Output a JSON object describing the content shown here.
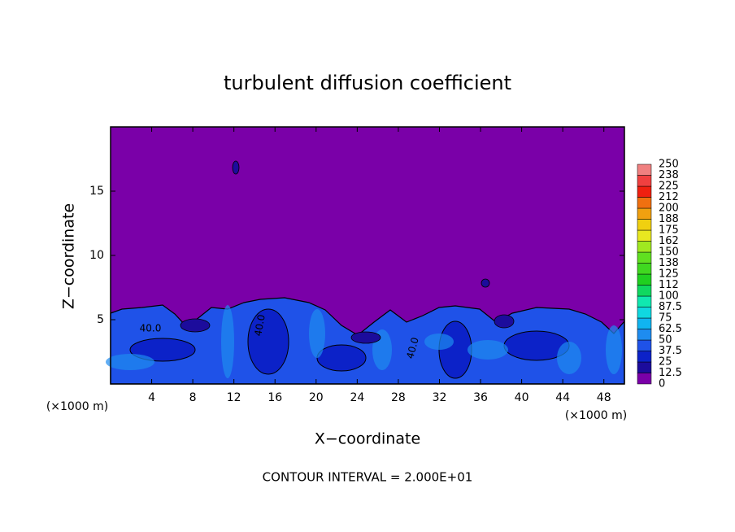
{
  "chart_data": {
    "type": "contour",
    "title": "turbulent diffusion coefficient",
    "xlabel": "X−coordinate",
    "ylabel": "Z−coordinate",
    "x_unit_left": "(×1000 m)",
    "x_unit_right": "(×1000 m)",
    "xlim": [
      0,
      50
    ],
    "ylim": [
      0,
      20
    ],
    "xticks": [
      4,
      8,
      12,
      16,
      20,
      24,
      28,
      32,
      36,
      40,
      44,
      48
    ],
    "yticks": [
      5,
      10,
      15
    ],
    "contour_labels": [
      "40.0",
      "40.0",
      "40.0"
    ],
    "footer": "CONTOUR INTERVAL = 2.000E+01",
    "colorbar": {
      "levels": [
        0,
        12.5,
        25,
        37.5,
        50,
        62.5,
        75,
        87.5,
        100,
        112,
        125,
        138,
        150,
        162,
        175,
        188,
        200,
        212,
        225,
        238,
        250
      ],
      "colors": [
        "#7a00a8",
        "#1c0c9c",
        "#0c22c8",
        "#1f52e8",
        "#1e8cf0",
        "#10b4f0",
        "#10d8e0",
        "#10e8b0",
        "#10d860",
        "#20d020",
        "#40d820",
        "#60e020",
        "#a0e820",
        "#e8e820",
        "#f0d010",
        "#f0a010",
        "#f07010",
        "#f02010",
        "#f04040",
        "#f08080"
      ]
    }
  }
}
